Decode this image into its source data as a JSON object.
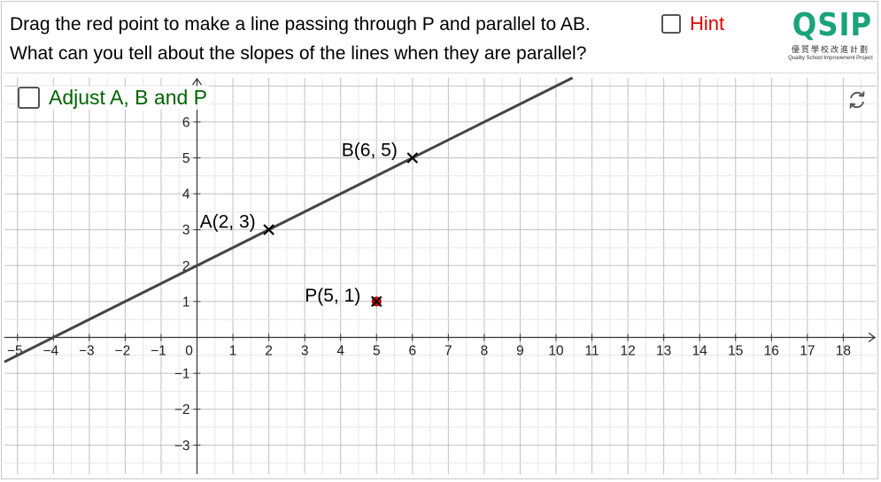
{
  "question": {
    "line1": "Drag the red point to make a line passing through P and parallel to AB.",
    "line2": "What can you tell about the slopes of the lines when they are parallel?"
  },
  "hint": {
    "label": "Hint",
    "checked": false,
    "color": "#e00000"
  },
  "logo": {
    "mark": "QSIP",
    "chinese": "優質學校改進計劃",
    "english": "Quality School Improvement Project",
    "color": "#1aa37a"
  },
  "adjust": {
    "label": "Adjust A, B and P",
    "checked": false,
    "color": "#006400"
  },
  "reset_icon": "refresh-icon",
  "graph": {
    "x_ticks": [
      -5,
      -4,
      -3,
      -2,
      -1,
      0,
      1,
      2,
      3,
      4,
      5,
      6,
      7,
      8,
      9,
      10,
      11,
      12,
      13,
      14,
      15,
      16,
      17,
      18
    ],
    "y_ticks": [
      -3,
      -2,
      -1,
      1,
      2,
      3,
      4,
      5,
      6
    ],
    "line_color": "#444444",
    "point_color": "#e00000",
    "points": [
      {
        "name": "A",
        "x": 2,
        "y": 3,
        "label": "A(2, 3)"
      },
      {
        "name": "B",
        "x": 6,
        "y": 5,
        "label": "B(6, 5)"
      },
      {
        "name": "P",
        "x": 5,
        "y": 1,
        "label": "P(5, 1)"
      }
    ]
  }
}
